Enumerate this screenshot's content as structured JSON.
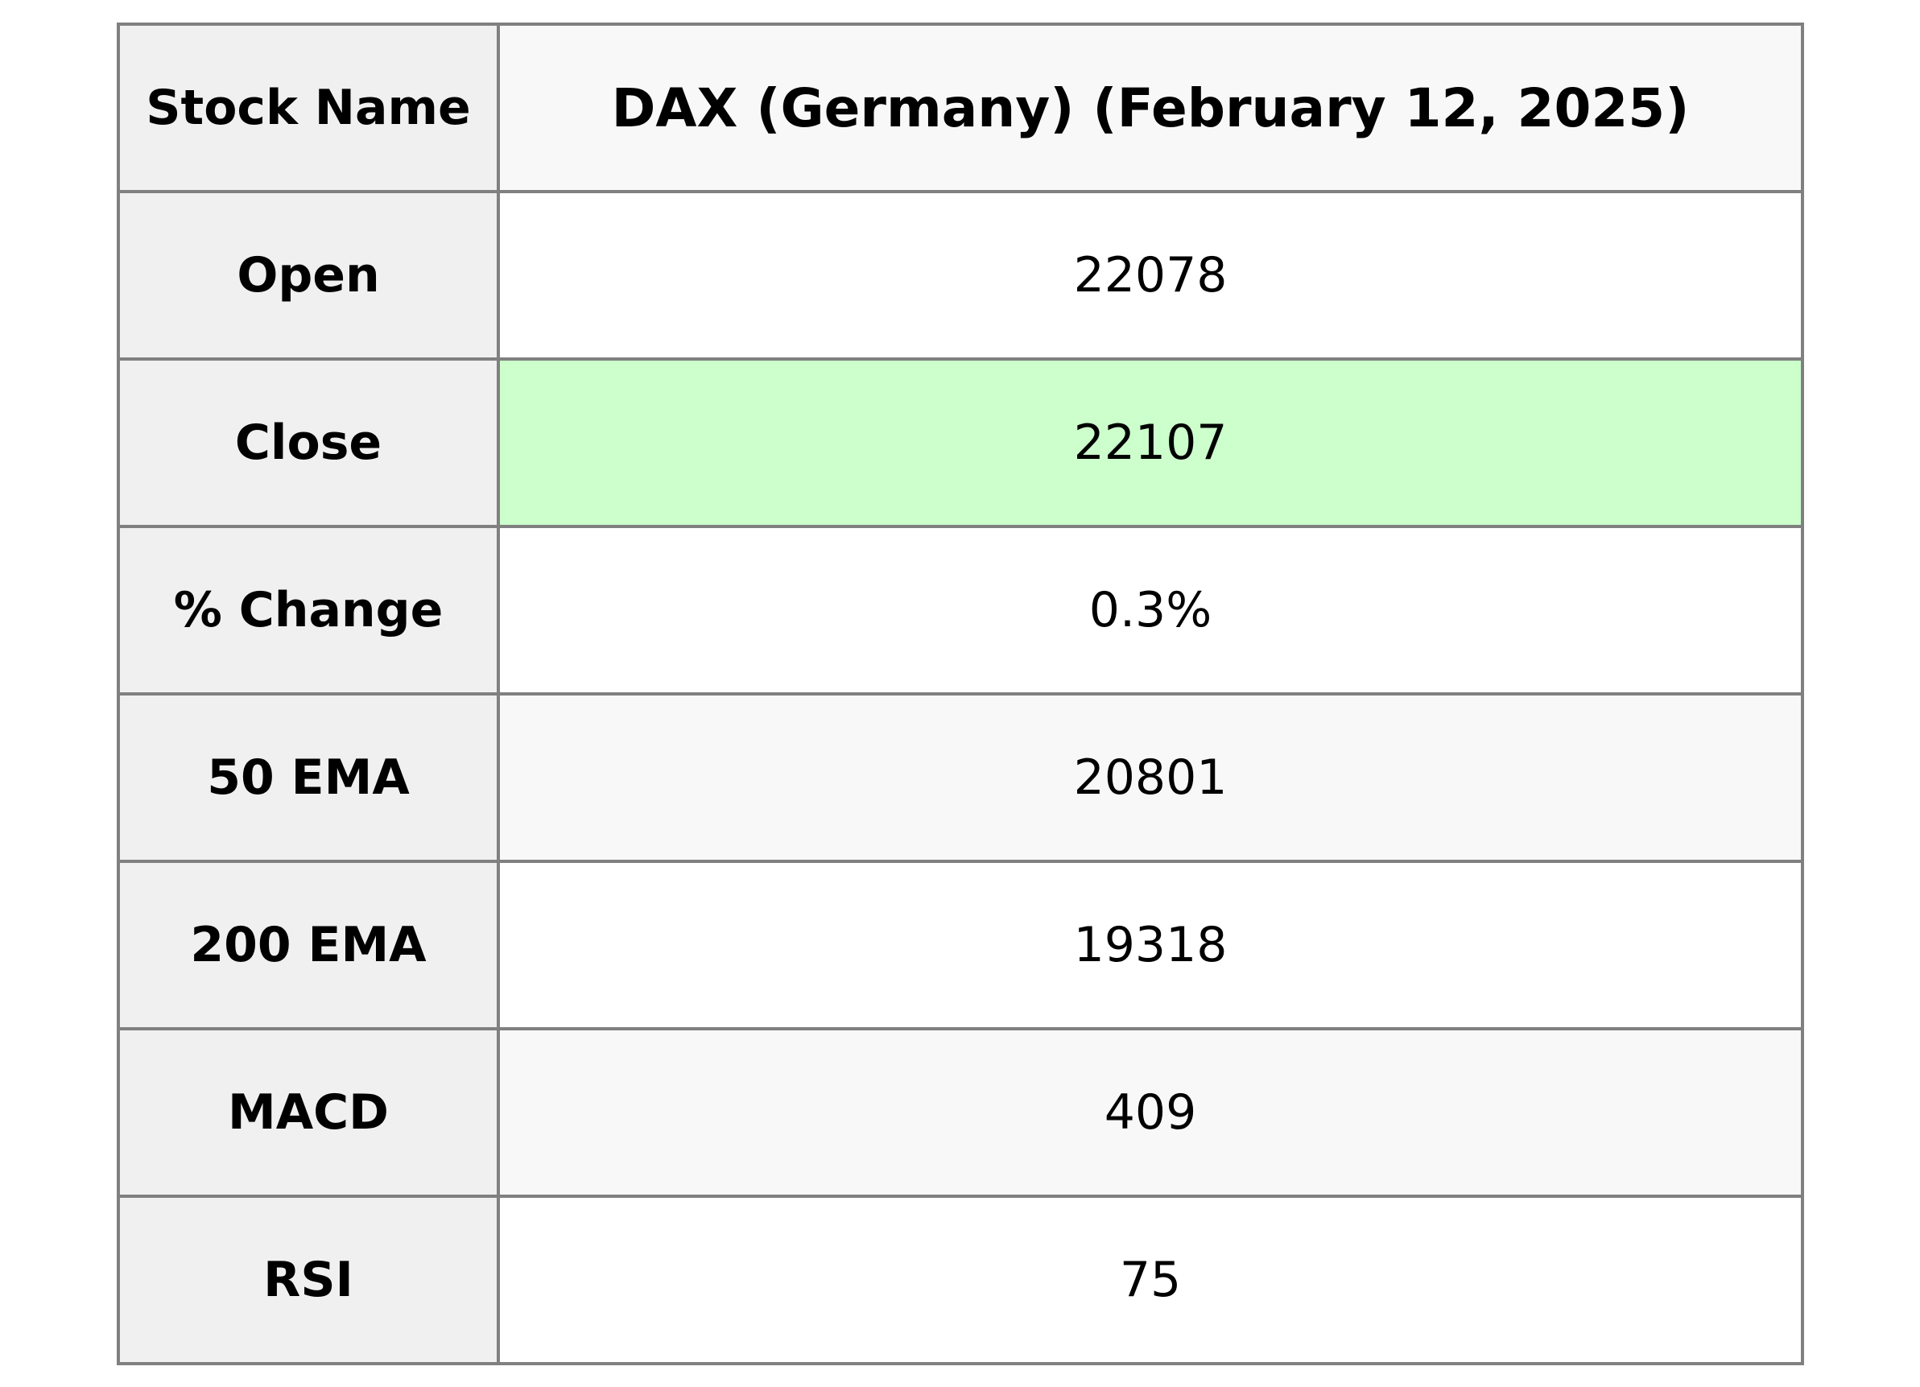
{
  "table": {
    "header_row": {
      "label": "Stock Name",
      "value": "DAX (Germany) (February 12, 2025)"
    },
    "rows": [
      {
        "label": "Open",
        "value": "22078",
        "highlight": false
      },
      {
        "label": "Close",
        "value": "22107",
        "highlight": true
      },
      {
        "label": "% Change",
        "value": "0.3%",
        "highlight": false
      },
      {
        "label": "50 EMA",
        "value": "20801",
        "highlight": false
      },
      {
        "label": "200 EMA",
        "value": "19318",
        "highlight": false
      },
      {
        "label": "MACD",
        "value": "409",
        "highlight": false
      },
      {
        "label": "RSI",
        "value": "75",
        "highlight": false
      }
    ]
  },
  "colors": {
    "label_column_bg": "#f0f0f0",
    "striped_row_bg": "#f8f8f8",
    "plain_row_bg": "#ffffff",
    "close_highlight_bg": "#ccffcc",
    "border": "#808080",
    "text": "#000000"
  },
  "chart_data": {
    "type": "table",
    "title": "DAX (Germany) stock metrics for February 12, 2025",
    "columns": [
      "Stock Name",
      "DAX (Germany) (February 12, 2025)"
    ],
    "rows": [
      [
        "Open",
        "22078"
      ],
      [
        "Close",
        "22107"
      ],
      [
        "% Change",
        "0.3%"
      ],
      [
        "50 EMA",
        "20801"
      ],
      [
        "200 EMA",
        "19318"
      ],
      [
        "MACD",
        "409"
      ],
      [
        "RSI",
        "75"
      ]
    ],
    "numeric_values": {
      "open": 22078,
      "close": 22107,
      "percent_change": 0.3,
      "ema_50": 20801,
      "ema_200": 19318,
      "macd": 409,
      "rsi": 75
    },
    "highlighted_cell": {
      "row": "Close",
      "value": "22107",
      "color": "#ccffcc"
    },
    "layout": {
      "label_column_shaded": true,
      "value_rows_striped": true,
      "grid": true
    }
  }
}
